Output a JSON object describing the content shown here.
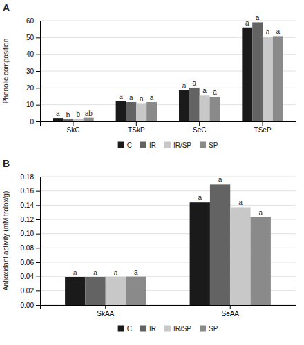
{
  "chart_data": [
    {
      "type": "bar",
      "title": "A",
      "y_label": "Phenolic composition",
      "categories": [
        "SkC",
        "TSkP",
        "SeC",
        "TSeP"
      ],
      "series": [
        {
          "name": "C",
          "color": "#1a1a1a",
          "values": [
            2.0,
            12.2,
            18.5,
            56.0
          ],
          "annotations": [
            "a",
            "a",
            "a",
            "a"
          ]
        },
        {
          "name": "IR",
          "color": "#636363",
          "values": [
            1.2,
            11.5,
            20.0,
            59.0
          ],
          "annotations": [
            "b",
            "a",
            "a",
            "a"
          ]
        },
        {
          "name": "IR/SP",
          "color": "#c8c8c8",
          "values": [
            1.5,
            10.5,
            15.5,
            50.5
          ],
          "annotations": [
            "b",
            "a",
            "a",
            "a"
          ]
        },
        {
          "name": "SP",
          "color": "#8a8a8a",
          "values": [
            2.2,
            11.5,
            14.8,
            50.8
          ],
          "annotations": [
            "ab",
            "a",
            "a",
            "a"
          ]
        }
      ],
      "ylim": [
        0,
        60
      ],
      "yticks": [
        0,
        10,
        20,
        30,
        40,
        50,
        60
      ],
      "grid": true,
      "legend": "bottom"
    },
    {
      "type": "bar",
      "title": "B",
      "y_label": "Antioxidant activity (mM trolox/g)",
      "categories": [
        "SkAA",
        "SeAA"
      ],
      "series": [
        {
          "name": "C",
          "color": "#1a1a1a",
          "values": [
            0.039,
            0.144
          ],
          "annotations": [
            "a",
            "a"
          ]
        },
        {
          "name": "IR",
          "color": "#636363",
          "values": [
            0.039,
            0.169
          ],
          "annotations": [
            "a",
            "a"
          ]
        },
        {
          "name": "IR/SP",
          "color": "#c8c8c8",
          "values": [
            0.039,
            0.137
          ],
          "annotations": [
            "a",
            "a"
          ]
        },
        {
          "name": "SP",
          "color": "#8a8a8a",
          "values": [
            0.04,
            0.123
          ],
          "annotations": [
            "a",
            "a"
          ]
        }
      ],
      "ylim": [
        0,
        0.18
      ],
      "yticks": [
        {
          "value": 0,
          "label": "0.00"
        },
        0.02,
        0.04,
        0.06,
        0.08,
        {
          "value": 0.1,
          "label": "0.10"
        },
        0.12,
        0.14,
        0.16,
        0.18
      ],
      "grid": true,
      "legend": "bottom"
    }
  ]
}
